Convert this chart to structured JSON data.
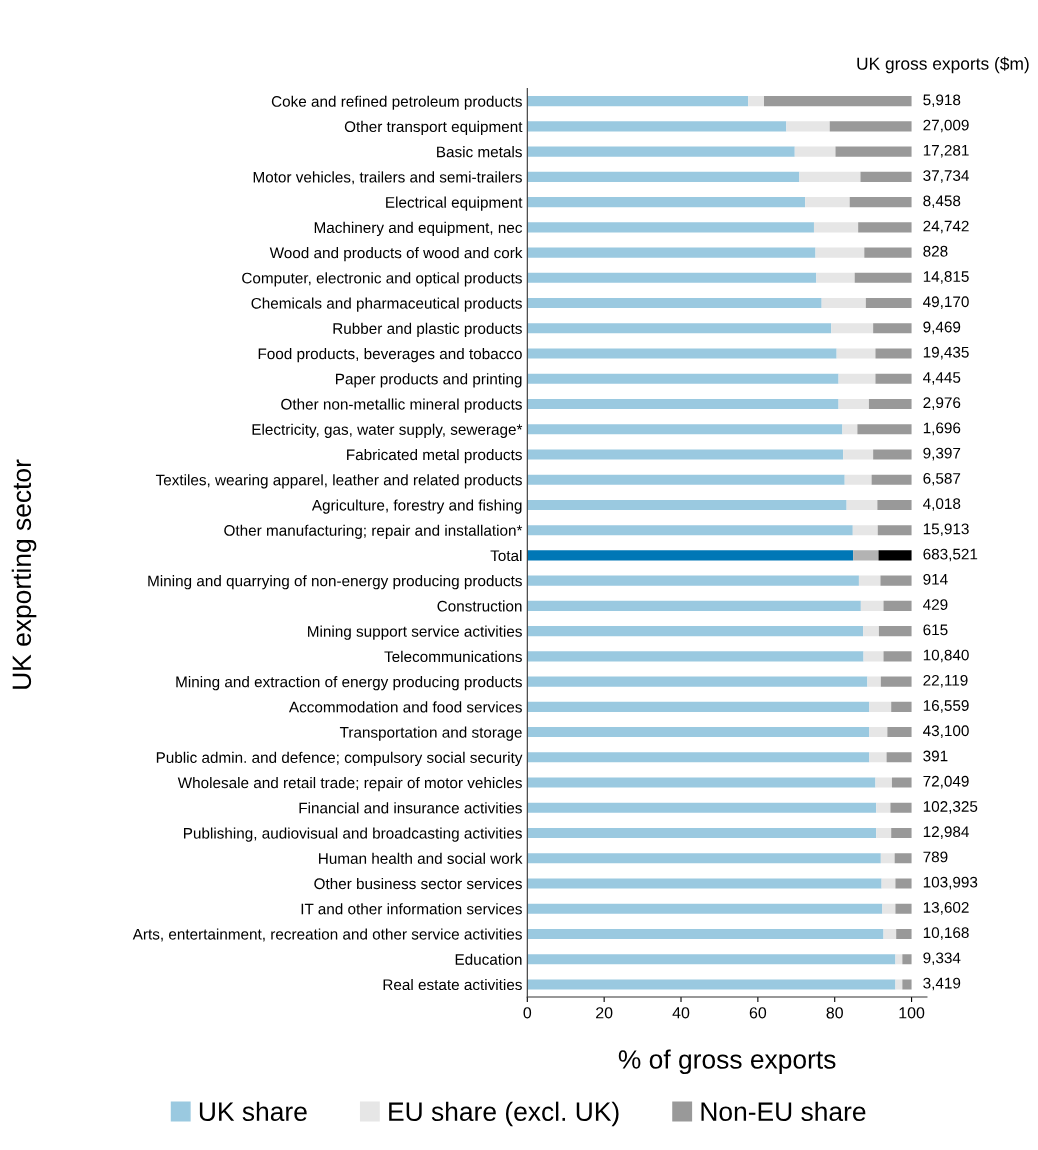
{
  "chart_data": {
    "type": "bar",
    "orientation": "horizontal",
    "stacked": true,
    "xlabel": "% of gross exports",
    "ylabel": "UK exporting sector",
    "categories": [
      "Coke and refined petroleum products",
      "Other transport equipment",
      "Basic metals",
      "Motor vehicles, trailers and semi-trailers",
      "Electrical equipment",
      "Machinery and equipment, nec",
      "Wood and products of wood and cork",
      "Computer, electronic and optical products",
      "Chemicals and pharmaceutical products",
      "Rubber and plastic products",
      "Food products, beverages and tobacco",
      "Paper products and printing",
      "Other non-metallic mineral products",
      "Electricity, gas, water supply, sewerage*",
      "Fabricated metal products",
      "Textiles, wearing apparel, leather and related products",
      "Agriculture, forestry and fishing",
      "Other manufacturing; repair and installation*",
      "Total",
      "Mining and quarrying of non-energy producing products",
      "Construction",
      "Mining support service activities",
      "Telecommunications",
      "Mining and extraction of energy producing products",
      "Accommodation and food services",
      "Transportation and storage",
      "Public admin. and defence; compulsory social security",
      "Wholesale and retail trade; repair of motor vehicles",
      "Financial and insurance activities",
      "Publishing, audiovisual and broadcasting activities",
      "Human health and social work",
      "Other business sector services",
      "IT and other information services",
      "Arts, entertainment, recreation and other service activities",
      "Education",
      "Real estate activities"
    ],
    "series": [
      {
        "name": "UK share",
        "color": "#9ac9e0",
        "colors": [
          "#9ac9e0",
          "#9ac9e0",
          "#9ac9e0",
          "#9ac9e0",
          "#9ac9e0",
          "#9ac9e0",
          "#9ac9e0",
          "#9ac9e0",
          "#9ac9e0",
          "#9ac9e0",
          "#9ac9e0",
          "#9ac9e0",
          "#9ac9e0",
          "#9ac9e0",
          "#9ac9e0",
          "#9ac9e0",
          "#9ac9e0",
          "#9ac9e0",
          "#0077b6",
          "#9ac9e0",
          "#9ac9e0",
          "#9ac9e0",
          "#9ac9e0",
          "#9ac9e0",
          "#9ac9e0",
          "#9ac9e0",
          "#9ac9e0",
          "#9ac9e0",
          "#9ac9e0",
          "#9ac9e0",
          "#9ac9e0",
          "#9ac9e0",
          "#9ac9e0",
          "#9ac9e0",
          "#9ac9e0",
          "#9ac9e0"
        ],
        "values": [
          57.5,
          67.4,
          69.6,
          70.8,
          72.3,
          74.6,
          75.0,
          75.2,
          76.6,
          79.1,
          80.5,
          81.0,
          81.0,
          82.0,
          82.2,
          82.6,
          83.1,
          84.7,
          84.8,
          86.3,
          86.8,
          87.4,
          87.5,
          88.5,
          89.0,
          89.0,
          89.0,
          90.6,
          90.8,
          90.8,
          92.0,
          92.2,
          92.4,
          92.7,
          95.8,
          95.8
        ]
      },
      {
        "name": "EU share (excl. UK)",
        "color": "#e6e6e6",
        "colors": [
          "#e6e6e6",
          "#e6e6e6",
          "#e6e6e6",
          "#e6e6e6",
          "#e6e6e6",
          "#e6e6e6",
          "#e6e6e6",
          "#e6e6e6",
          "#e6e6e6",
          "#e6e6e6",
          "#e6e6e6",
          "#e6e6e6",
          "#e6e6e6",
          "#e6e6e6",
          "#e6e6e6",
          "#e6e6e6",
          "#e6e6e6",
          "#e6e6e6",
          "#b3b3b3",
          "#e6e6e6",
          "#e6e6e6",
          "#e6e6e6",
          "#e6e6e6",
          "#e6e6e6",
          "#e6e6e6",
          "#e6e6e6",
          "#e6e6e6",
          "#e6e6e6",
          "#e6e6e6",
          "#e6e6e6",
          "#e6e6e6",
          "#e6e6e6",
          "#e6e6e6",
          "#e6e6e6",
          "#e6e6e6",
          "#e6e6e6"
        ],
        "values": [
          4.1,
          11.3,
          10.6,
          15.9,
          11.6,
          11.5,
          12.7,
          10.0,
          11.5,
          10.9,
          10.1,
          9.6,
          7.9,
          3.9,
          7.8,
          7.0,
          8.0,
          6.5,
          6.6,
          5.6,
          5.9,
          4.1,
          5.2,
          3.5,
          5.7,
          4.7,
          4.5,
          4.3,
          3.7,
          3.9,
          3.6,
          3.6,
          3.4,
          3.3,
          1.8,
          1.8
        ]
      },
      {
        "name": "Non-EU share",
        "color": "#999999",
        "colors": [
          "#999999",
          "#999999",
          "#999999",
          "#999999",
          "#999999",
          "#999999",
          "#999999",
          "#999999",
          "#999999",
          "#999999",
          "#999999",
          "#999999",
          "#999999",
          "#999999",
          "#999999",
          "#999999",
          "#999999",
          "#999999",
          "#000000",
          "#999999",
          "#999999",
          "#999999",
          "#999999",
          "#999999",
          "#999999",
          "#999999",
          "#999999",
          "#999999",
          "#999999",
          "#999999",
          "#999999",
          "#999999",
          "#999999",
          "#999999",
          "#999999",
          "#999999"
        ],
        "values": [
          38.4,
          21.3,
          19.8,
          13.3,
          16.1,
          13.9,
          12.3,
          14.8,
          11.9,
          10.0,
          9.4,
          9.4,
          11.1,
          14.1,
          10.0,
          10.4,
          8.9,
          8.8,
          8.6,
          8.1,
          7.3,
          8.5,
          7.3,
          8.0,
          5.3,
          6.3,
          6.5,
          5.1,
          5.5,
          5.3,
          4.4,
          4.2,
          4.2,
          4.0,
          2.4,
          2.4
        ]
      }
    ],
    "annotations": [
      "UK gross exports ($m)",
      "5,918",
      "27,009",
      "17,281",
      "37,734",
      "8,458",
      "24,742",
      "828",
      "14,815",
      "49,170",
      "9,469",
      "19,435",
      "4,445",
      "2,976",
      "1,696",
      "9,397",
      "6,587",
      "4,018",
      "15,913",
      "683,521",
      "914",
      "429",
      "615",
      "10,840",
      "22,119",
      "16,559",
      "43,100",
      "391",
      "72,049",
      "102,325",
      "12,984",
      "789",
      "103,993",
      "13,602",
      "10,168",
      "9,334",
      "3,419"
    ],
    "xlim": [
      0,
      104
    ],
    "xticks": [
      0,
      20,
      40,
      60,
      80,
      100
    ],
    "grid": false,
    "legend": "bottom"
  }
}
